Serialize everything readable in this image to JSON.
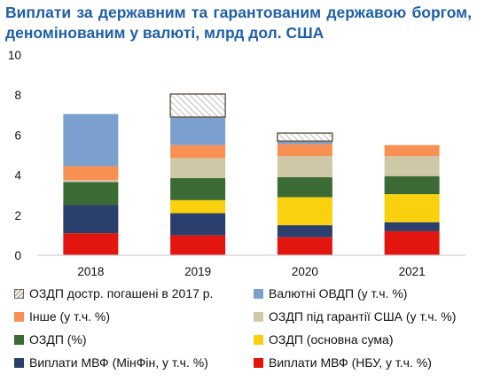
{
  "title": "Виплати за державним та гарантованим державою боргом, деномінованим у валюті, млрд дол. США",
  "chart_data": {
    "type": "bar",
    "stacked": true,
    "title": "Виплати за державним та гарантованим державою боргом, деномінованим у валюті, млрд дол. США",
    "categories": [
      "2018",
      "2019",
      "2020",
      "2021"
    ],
    "ylim": [
      0,
      10
    ],
    "yticks": [
      "0",
      "2",
      "4",
      "6",
      "8",
      "10"
    ],
    "grid": false,
    "legend_position": "bottom",
    "series": [
      {
        "name": "Виплати МВФ  (НБУ, у т.ч. %)",
        "color": "#e3150f",
        "values": [
          1.1,
          1.0,
          0.9,
          1.2
        ]
      },
      {
        "name": "Виплати МВФ  (МінФін, у т.ч. %)",
        "color": "#2b3f6c",
        "values": [
          1.4,
          1.1,
          0.6,
          0.45
        ]
      },
      {
        "name": "ОЗДП (основна сума)",
        "color": "#fad10e",
        "values": [
          0.0,
          0.65,
          1.4,
          1.4
        ]
      },
      {
        "name": "ОЗДП (%)",
        "color": "#3c6a34",
        "values": [
          1.15,
          1.1,
          1.0,
          0.9
        ]
      },
      {
        "name": "ОЗДП під гарантії США (у т.ч. %)",
        "color": "#cfc8a7",
        "values": [
          0.1,
          1.0,
          1.05,
          1.0
        ]
      },
      {
        "name": "Інше (у т.ч. %)",
        "color": "#f79052",
        "values": [
          0.7,
          0.65,
          0.6,
          0.55
        ]
      },
      {
        "name": "Валютні ОВДП (у т.ч. %)",
        "color": "#7b9fcf",
        "values": [
          2.6,
          1.4,
          0.15,
          0.0
        ]
      },
      {
        "name": "ОЗДП достр. погашені в 2017 р.",
        "color": "#a59c90",
        "pattern": "hatch",
        "values": [
          0.0,
          1.15,
          0.4,
          0.0
        ]
      }
    ]
  }
}
